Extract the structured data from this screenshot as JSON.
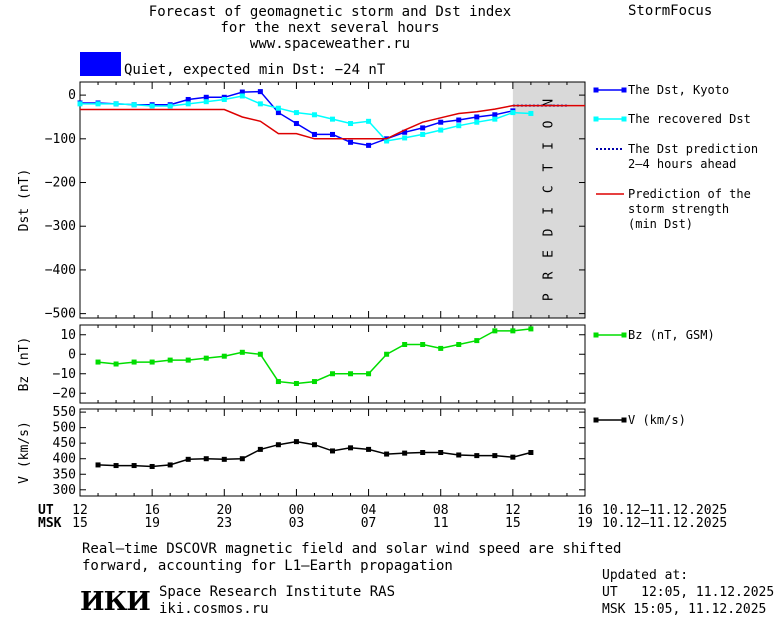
{
  "header": {
    "title_lines": [
      "Forecast of geomagnetic storm and Dst index",
      "for the next several hours",
      "www.spaceweather.ru"
    ],
    "brand": "StormFocus",
    "status_label": "Quiet, expected min Dst: −24 nT",
    "status_color": "#0000ff"
  },
  "legend": {
    "dst_kyoto": "The Dst, Kyoto",
    "dst_recovered": "The recovered Dst",
    "dst_prediction_1": "The Dst prediction",
    "dst_prediction_2": "2–4 hours ahead",
    "storm_1": "Prediction of the",
    "storm_2": "storm strength",
    "storm_3": "(min Dst)",
    "bz": "Bz (nT, GSM)",
    "v": "V (km/s)"
  },
  "time_axis": {
    "ut_label": "UT",
    "msk_label": "MSK",
    "ut_ticks": [
      "12",
      "16",
      "20",
      "00",
      "04",
      "08",
      "12",
      "16"
    ],
    "msk_ticks": [
      "15",
      "19",
      "23",
      "03",
      "07",
      "11",
      "15",
      "19"
    ],
    "date_range_ut": "10.12–11.12.2025",
    "date_range_msk": "10.12–11.12.2025"
  },
  "footer": {
    "note_1": "Real–time DSCOVR magnetic field and solar wind speed are shifted",
    "note_2": "forward, accounting for L1–Earth propagation",
    "logo": "ИКИ",
    "institute": "Space Research Institute RAS",
    "site": "iki.cosmos.ru",
    "updated_label": "Updated at:",
    "updated_ut": "UT   12:05, 11.12.2025",
    "updated_msk": "MSK 15:05, 11.12.2025"
  },
  "chart_data": [
    {
      "type": "line",
      "ylabel": "Dst (nT)",
      "ylim": [
        -510,
        30
      ],
      "yticks": [
        0,
        -100,
        -200,
        -300,
        -400,
        -500
      ],
      "xlim": [
        0,
        28
      ],
      "prediction_band": [
        24,
        28
      ],
      "prediction_text": "PREDICTION",
      "series": [
        {
          "name": "The Dst, Kyoto",
          "color": "#0000ff",
          "marker": "square",
          "x": [
            0,
            1,
            2,
            3,
            4,
            5,
            6,
            7,
            8,
            9,
            10,
            11,
            12,
            13,
            14,
            15,
            16,
            17,
            18,
            19,
            20,
            21,
            22,
            23,
            24
          ],
          "y": [
            -18,
            -18,
            -20,
            -22,
            -22,
            -22,
            -10,
            -5,
            -5,
            7,
            8,
            -40,
            -65,
            -90,
            -90,
            -108,
            -115,
            -100,
            -85,
            -75,
            -62,
            -57,
            -50,
            -45,
            -36
          ]
        },
        {
          "name": "The recovered Dst",
          "color": "#00ffff",
          "marker": "square",
          "x": [
            0,
            1,
            2,
            3,
            4,
            5,
            6,
            7,
            8,
            9,
            10,
            11,
            12,
            13,
            14,
            15,
            16,
            17,
            18,
            19,
            20,
            21,
            22,
            23,
            24,
            25
          ],
          "y": [
            -20,
            -20,
            -20,
            -22,
            -25,
            -25,
            -20,
            -15,
            -10,
            -2,
            -20,
            -30,
            -40,
            -45,
            -55,
            -65,
            -60,
            -105,
            -98,
            -90,
            -80,
            -70,
            -62,
            -55,
            -40,
            -42
          ]
        },
        {
          "name": "The Dst prediction 2–4 hours ahead",
          "color": "#0000aa",
          "style": "dotted",
          "x": [
            24,
            27
          ],
          "y": [
            -24,
            -24
          ]
        },
        {
          "name": "Prediction of the storm strength (min Dst)",
          "color": "#dd0000",
          "x": [
            0,
            8,
            9,
            10,
            11,
            12,
            13,
            14,
            15,
            16,
            17,
            18,
            19,
            20,
            21,
            22,
            23,
            24,
            28
          ],
          "y": [
            -33,
            -33,
            -50,
            -60,
            -88,
            -88,
            -100,
            -100,
            -100,
            -100,
            -100,
            -80,
            -62,
            -52,
            -42,
            -38,
            -32,
            -24,
            -24
          ]
        }
      ]
    },
    {
      "type": "line",
      "ylabel": "Bz (nT)",
      "ylim": [
        -25,
        15
      ],
      "yticks": [
        10,
        0,
        -10,
        -20
      ],
      "series": [
        {
          "name": "Bz (nT, GSM)",
          "color": "#00dd00",
          "marker": "square",
          "x": [
            1,
            2,
            3,
            4,
            5,
            6,
            7,
            8,
            9,
            10,
            11,
            12,
            13,
            14,
            15,
            16,
            17,
            18,
            19,
            20,
            21,
            22,
            23,
            24,
            25
          ],
          "y": [
            -4,
            -5,
            -4,
            -4,
            -3,
            -3,
            -2,
            -1,
            1,
            0,
            -14,
            -15,
            -14,
            -10,
            -10,
            -10,
            0,
            5,
            5,
            3,
            5,
            7,
            12,
            12,
            13
          ]
        }
      ]
    },
    {
      "type": "line",
      "ylabel": "V (km/s)",
      "ylim": [
        280,
        560
      ],
      "yticks": [
        550,
        500,
        450,
        400,
        350,
        300
      ],
      "series": [
        {
          "name": "V (km/s)",
          "color": "#000000",
          "marker": "square",
          "x": [
            1,
            2,
            3,
            4,
            5,
            6,
            7,
            8,
            9,
            10,
            11,
            12,
            13,
            14,
            15,
            16,
            17,
            18,
            19,
            20,
            21,
            22,
            23,
            24,
            25
          ],
          "y": [
            380,
            378,
            378,
            375,
            380,
            398,
            400,
            398,
            400,
            430,
            445,
            455,
            445,
            425,
            435,
            430,
            415,
            418,
            420,
            420,
            412,
            410,
            410,
            405,
            420
          ]
        }
      ]
    }
  ]
}
